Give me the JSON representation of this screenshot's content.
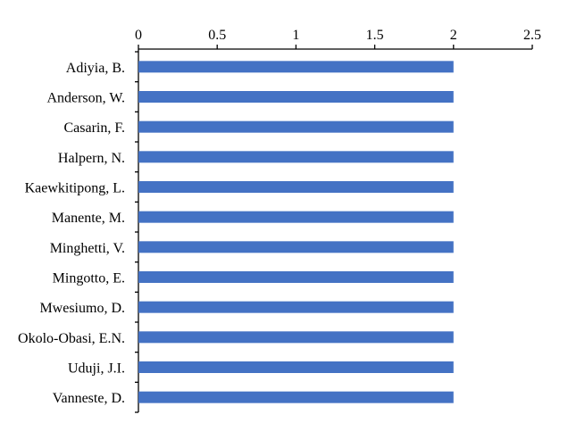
{
  "chart_data": {
    "type": "bar",
    "orientation": "horizontal",
    "title": "",
    "xlabel": "",
    "ylabel": "",
    "categories": [
      "Adiyia, B.",
      "Anderson, W.",
      "Casarin, F.",
      "Halpern, N.",
      "Kaewkitipong, L.",
      "Manente, M.",
      "Minghetti, V.",
      "Mingotto, E.",
      "Mwesiumo, D.",
      "Okolo-Obasi, E.N.",
      "Uduji, J.I.",
      "Vanneste, D."
    ],
    "values": [
      2,
      2,
      2,
      2,
      2,
      2,
      2,
      2,
      2,
      2,
      2,
      2
    ],
    "xlim": [
      0,
      2.5
    ],
    "x_ticks": [
      "0",
      "0.5",
      "1",
      "1.5",
      "2",
      "2.5"
    ],
    "x_axis_position": "top",
    "grid": false,
    "legend": "none",
    "bar_color": "#4472C4"
  }
}
